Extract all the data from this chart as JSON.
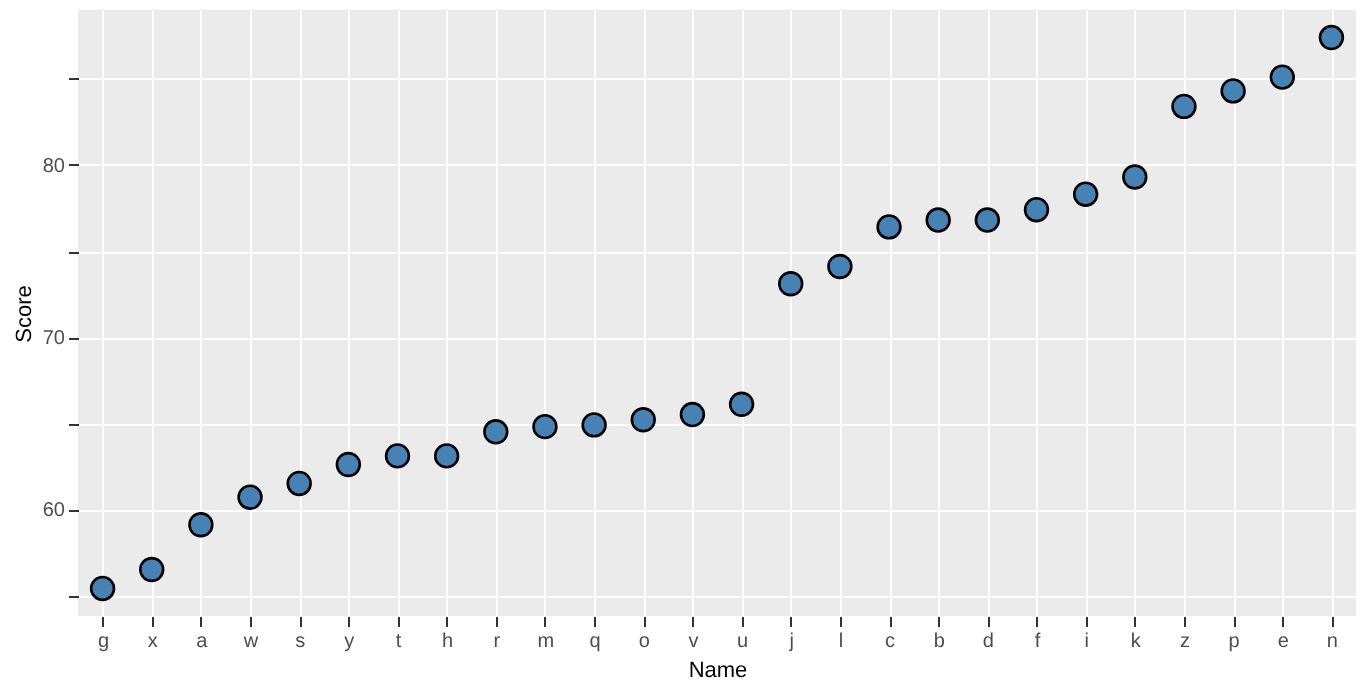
{
  "chart_data": {
    "type": "scatter",
    "xlabel": "Name",
    "ylabel": "Score",
    "categories": [
      "g",
      "x",
      "a",
      "w",
      "s",
      "y",
      "t",
      "h",
      "r",
      "m",
      "q",
      "o",
      "v",
      "u",
      "j",
      "l",
      "c",
      "b",
      "d",
      "f",
      "i",
      "k",
      "z",
      "p",
      "e",
      "n"
    ],
    "series": [
      {
        "color": "#4682b4",
        "values": [
          55.4,
          56.5,
          59.1,
          60.7,
          61.5,
          62.6,
          63.1,
          63.1,
          64.5,
          64.8,
          64.9,
          65.2,
          65.5,
          66.1,
          73.1,
          74.1,
          76.4,
          76.8,
          76.8,
          77.4,
          78.3,
          79.3,
          83.4,
          84.3,
          85.1,
          87.4
        ]
      }
    ],
    "ylim": [
      53.8,
      89
    ],
    "yticks": [
      {
        "value": 55,
        "label": null
      },
      60,
      {
        "value": 65,
        "label": null
      },
      70,
      {
        "value": 75,
        "label": null
      },
      80,
      {
        "value": 85,
        "label": null
      }
    ],
    "grid": true,
    "marker": "circle"
  }
}
